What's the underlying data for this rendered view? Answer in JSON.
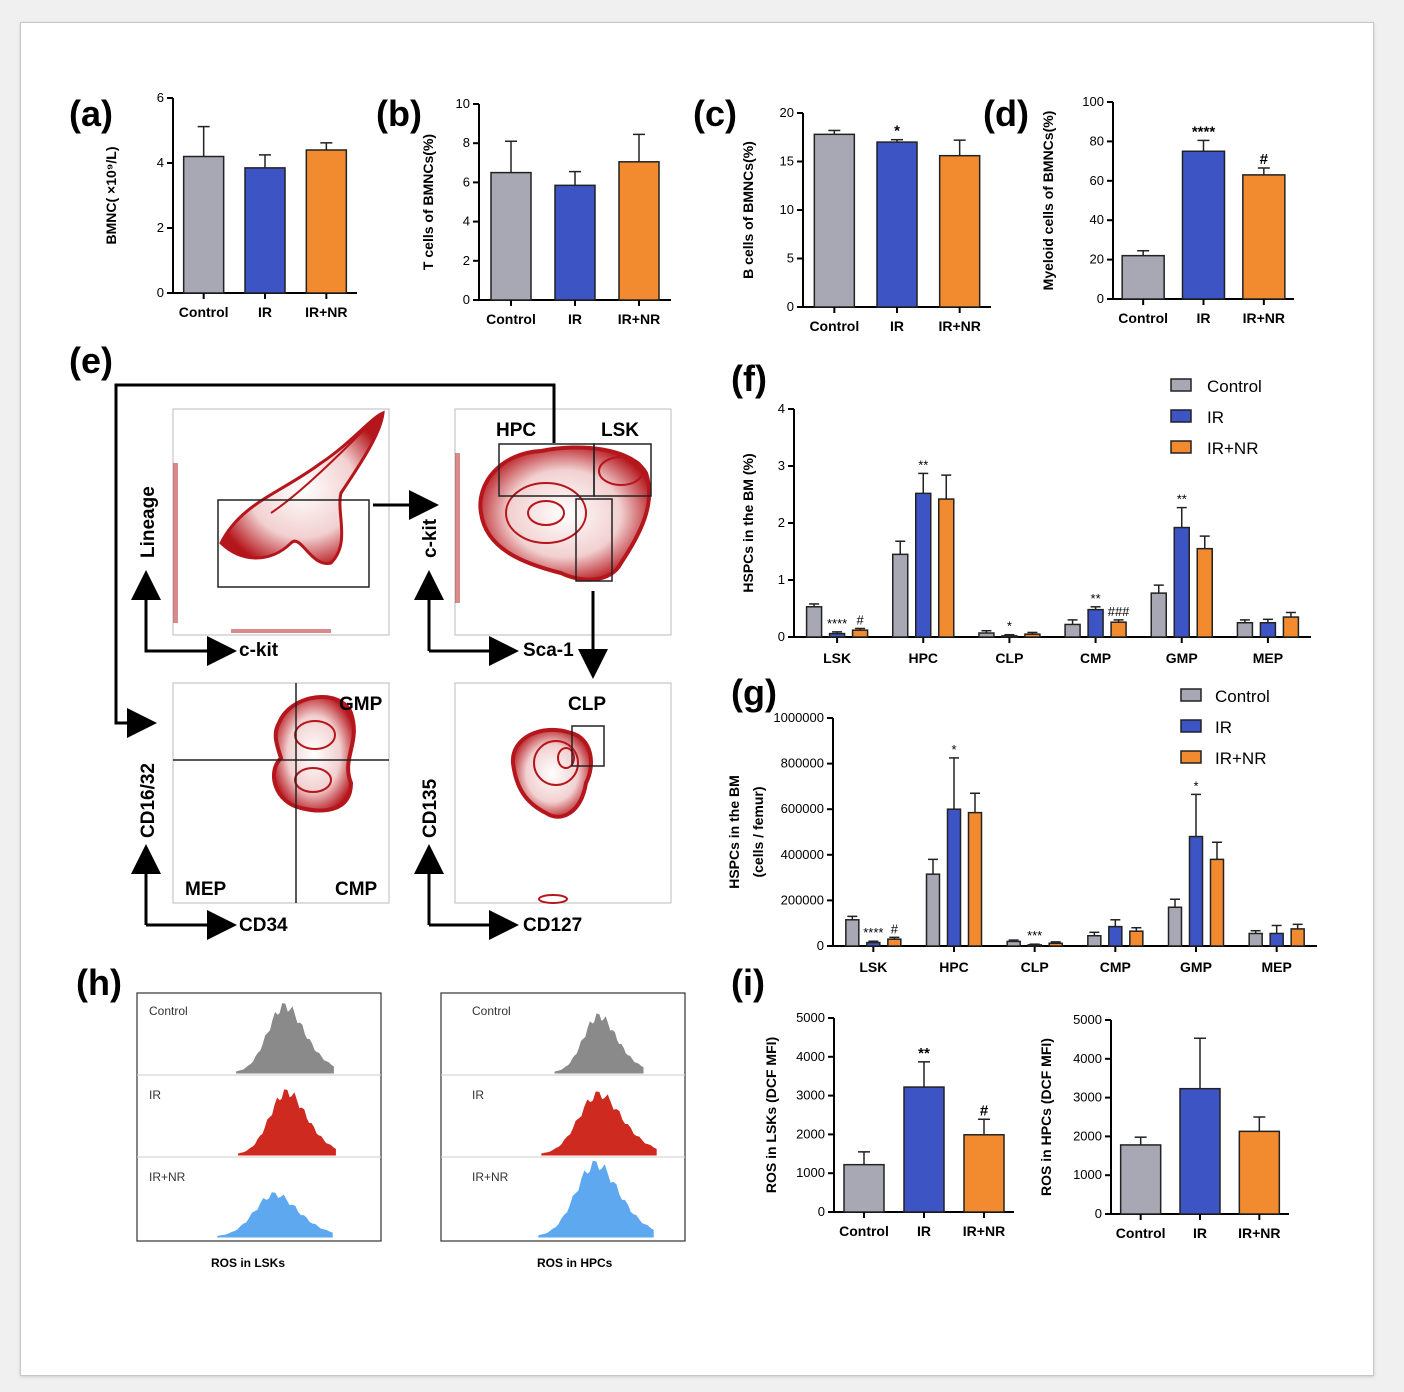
{
  "colors": {
    "control": "#a8a8b4",
    "ir": "#3d55c4",
    "irnr": "#f28a30",
    "flow": "#b5161c",
    "hist_control": "#8a8a8a",
    "hist_ir": "#cf2a1f",
    "hist_irnr": "#5ea8f0"
  },
  "legend": [
    "Control",
    "IR",
    "IR+NR"
  ],
  "panels": {
    "a": "(a)",
    "b": "(b)",
    "c": "(c)",
    "d": "(d)",
    "e": "(e)",
    "f": "(f)",
    "g": "(g)",
    "h": "(h)",
    "i": "(i)"
  },
  "chart_data": [
    {
      "id": "a",
      "type": "bar",
      "categories": [
        "Control",
        "IR",
        "IR+NR"
      ],
      "values": [
        4.2,
        3.85,
        4.4
      ],
      "errors": [
        0.92,
        0.4,
        0.22
      ],
      "ylabel": "BMNC( ×10⁹/L)",
      "ylim": [
        0,
        6
      ],
      "yticks": [
        0,
        2,
        4,
        6
      ],
      "sig": [
        "",
        "",
        ""
      ]
    },
    {
      "id": "b",
      "type": "bar",
      "categories": [
        "Control",
        "IR",
        "IR+NR"
      ],
      "values": [
        6.5,
        5.85,
        7.05
      ],
      "errors": [
        1.6,
        0.7,
        1.4
      ],
      "ylabel": "T cells of BMNCs(%)",
      "ylim": [
        0,
        10
      ],
      "yticks": [
        0,
        2,
        4,
        6,
        8,
        10
      ],
      "sig": [
        "",
        "",
        ""
      ]
    },
    {
      "id": "c",
      "type": "bar",
      "categories": [
        "Control",
        "IR",
        "IR+NR"
      ],
      "values": [
        17.8,
        17.0,
        15.6
      ],
      "errors": [
        0.4,
        0.25,
        1.6
      ],
      "ylabel": "B cells of BMNCs(%)",
      "ylim": [
        0,
        20
      ],
      "yticks": [
        0,
        5,
        10,
        15,
        20
      ],
      "sig": [
        "",
        "*",
        ""
      ]
    },
    {
      "id": "d",
      "type": "bar",
      "categories": [
        "Control",
        "IR",
        "IR+NR"
      ],
      "values": [
        22,
        75,
        63
      ],
      "errors": [
        2.5,
        5.5,
        3.5
      ],
      "ylabel": "Myeloid cells of BMNCs(%)",
      "ylim": [
        0,
        100
      ],
      "yticks": [
        0,
        20,
        40,
        60,
        80,
        100
      ],
      "sig": [
        "",
        "****",
        "#"
      ]
    },
    {
      "id": "f",
      "type": "bar",
      "categories": [
        "LSK",
        "HPC",
        "CLP",
        "CMP",
        "GMP",
        "MEP"
      ],
      "ylabel": "HSPCs in the BM (%)",
      "ylim": [
        0,
        4
      ],
      "yticks": [
        0,
        1,
        2,
        3,
        4
      ],
      "series": [
        {
          "name": "Control",
          "values": [
            0.53,
            1.45,
            0.07,
            0.22,
            0.77,
            0.25
          ],
          "errors": [
            0.05,
            0.23,
            0.04,
            0.08,
            0.14,
            0.05
          ]
        },
        {
          "name": "IR",
          "values": [
            0.06,
            2.52,
            0.02,
            0.48,
            1.92,
            0.25
          ],
          "errors": [
            0.03,
            0.35,
            0.02,
            0.05,
            0.35,
            0.06
          ]
        },
        {
          "name": "IR+NR",
          "values": [
            0.12,
            2.42,
            0.05,
            0.26,
            1.55,
            0.35
          ],
          "errors": [
            0.03,
            0.42,
            0.03,
            0.04,
            0.22,
            0.08
          ]
        }
      ],
      "sig": [
        [
          "",
          "****",
          "#"
        ],
        [
          "",
          "**",
          ""
        ],
        [
          "",
          "*",
          ""
        ],
        [
          "",
          "**",
          "###"
        ],
        [
          "",
          "**",
          ""
        ],
        [
          "",
          "",
          ""
        ]
      ]
    },
    {
      "id": "g",
      "type": "bar",
      "categories": [
        "LSK",
        "HPC",
        "CLP",
        "CMP",
        "GMP",
        "MEP"
      ],
      "ylabel": "HSPCs in the BM",
      "ylabel2": "(cells / femur)",
      "ylim": [
        0,
        1000000
      ],
      "yticks": [
        0,
        200000,
        400000,
        600000,
        800000,
        1000000
      ],
      "series": [
        {
          "name": "Control",
          "values": [
            115000,
            315000,
            20000,
            45000,
            170000,
            55000
          ],
          "errors": [
            15000,
            65000,
            6000,
            15000,
            35000,
            12000
          ]
        },
        {
          "name": "IR",
          "values": [
            15000,
            600000,
            5000,
            85000,
            480000,
            55000
          ],
          "errors": [
            6000,
            225000,
            3000,
            30000,
            185000,
            35000
          ]
        },
        {
          "name": "IR+NR",
          "values": [
            30000,
            585000,
            12000,
            65000,
            380000,
            75000
          ],
          "errors": [
            8000,
            85000,
            6000,
            15000,
            75000,
            20000
          ]
        }
      ],
      "sig": [
        [
          "",
          "****",
          "#"
        ],
        [
          "",
          "*",
          ""
        ],
        [
          "",
          "***",
          ""
        ],
        [
          "",
          "",
          ""
        ],
        [
          "",
          "*",
          ""
        ],
        [
          "",
          "",
          ""
        ]
      ]
    },
    {
      "id": "i1",
      "type": "bar",
      "categories": [
        "Control",
        "IR",
        "IR+NR"
      ],
      "values": [
        1220,
        3220,
        1990
      ],
      "errors": [
        330,
        650,
        400
      ],
      "ylabel": "ROS in LSKs (DCF MFI)",
      "ylim": [
        0,
        5000
      ],
      "yticks": [
        0,
        1000,
        2000,
        3000,
        4000,
        5000
      ],
      "sig": [
        "",
        "**",
        "#"
      ]
    },
    {
      "id": "i2",
      "type": "bar",
      "categories": [
        "Control",
        "IR",
        "IR+NR"
      ],
      "values": [
        1780,
        3230,
        2130
      ],
      "errors": [
        200,
        1300,
        370
      ],
      "ylabel": "ROS in HPCs (DCF MFI)",
      "ylim": [
        0,
        5000
      ],
      "yticks": [
        0,
        1000,
        2000,
        3000,
        4000,
        5000
      ],
      "sig": [
        "",
        "",
        ""
      ]
    }
  ],
  "flow": {
    "p1": {
      "y": "Lineage",
      "x": "c-kit"
    },
    "p2": {
      "y": "c-kit",
      "x": "Sca-1",
      "g1": "HPC",
      "g2": "LSK"
    },
    "p3": {
      "y": "CD16/32",
      "x": "CD34",
      "g1": "GMP",
      "g2": "MEP",
      "g3": "CMP"
    },
    "p4": {
      "y": "CD135",
      "x": "CD127",
      "g1": "CLP"
    }
  },
  "hist": {
    "left": {
      "title": "ROS in LSKs",
      "rows": [
        "Control",
        "IR",
        "IR+NR"
      ]
    },
    "right": {
      "title": "ROS in HPCs",
      "rows": [
        "Control",
        "IR",
        "IR+NR"
      ]
    }
  }
}
